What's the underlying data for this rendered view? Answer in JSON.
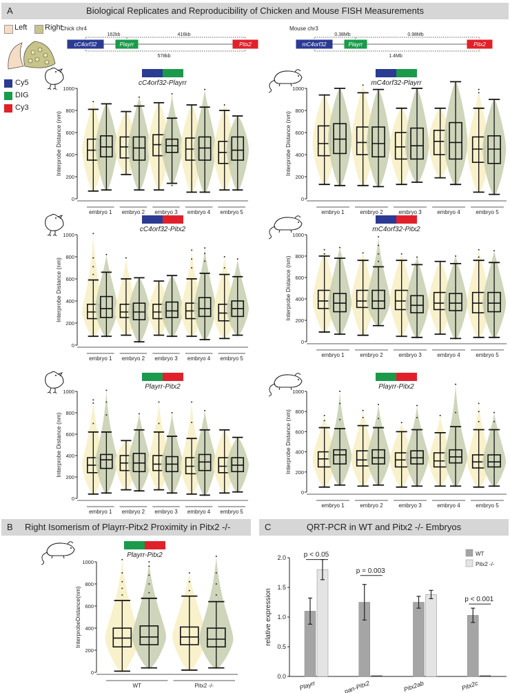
{
  "figure_title": "Biological Replicates and Reproducibility of Chicken and Mouse FISH Measurements",
  "panel_labels": {
    "a": "A",
    "b": "B",
    "c": "C"
  },
  "panel_b_title": "Right Isomerism of Playrr-Pitx2 Proximity in Pitx2 -/-",
  "panel_c_title": "QRT-PCR in WT and Pitx2 -/- Embryos",
  "side_legend": {
    "left": "Left",
    "right": "Right",
    "left_color": "#f6dcc4",
    "right_color": "#c8c48a"
  },
  "probe_legend": [
    {
      "label": "Cy5",
      "color": "#2b3a93"
    },
    {
      "label": "DIG",
      "color": "#1a9a4a"
    },
    {
      "label": "Cy3",
      "color": "#e0212b"
    }
  ],
  "locus": {
    "chick": {
      "title": "Chick chr4",
      "genes": [
        "cC4orf32",
        "Playrr",
        "Pitx2"
      ],
      "gaps": [
        "162kb",
        "416kb",
        "578kb"
      ]
    },
    "mouse": {
      "title": "Mouse chr3",
      "genes": [
        "mC4orf32",
        "Playrr",
        "Pitx2"
      ],
      "gaps": [
        "0.38Mb",
        "0.98Mb",
        "1.4Mb"
      ]
    }
  },
  "colors": {
    "left_fill": "#f7f0c6",
    "right_fill": "#c9d0b2",
    "box": "#111111",
    "wt_bar": "#a5a5a5",
    "ko_bar": "#e4e4e4"
  },
  "chart_data": [
    {
      "type": "box",
      "id": "A1",
      "title": "cC4orf32-Playrr",
      "probe_colors": [
        "#2b3a93",
        "#1a9a4a"
      ],
      "species": "chick",
      "ylabel": "Interprobe Distance (nm)",
      "ylim": [
        0,
        1000
      ],
      "yticks": [
        0,
        200,
        400,
        600,
        800,
        1000
      ],
      "categories": [
        "embryo 1",
        "embryo 2",
        "embryo 3",
        "embryo 4",
        "embryo 5"
      ],
      "boxes": [
        {
          "min": 70,
          "q1": 350,
          "med": 440,
          "q3": 540,
          "max": 810,
          "out": [
            880
          ]
        },
        {
          "min": 80,
          "q1": 380,
          "med": 470,
          "q3": 570,
          "max": 860,
          "out": []
        },
        {
          "min": 220,
          "q1": 370,
          "med": 470,
          "q3": 560,
          "max": 790,
          "out": []
        },
        {
          "min": 80,
          "q1": 350,
          "med": 460,
          "q3": 560,
          "max": 840,
          "out": [
            920
          ]
        },
        {
          "min": 80,
          "q1": 390,
          "med": 490,
          "q3": 580,
          "max": 870,
          "out": []
        },
        {
          "min": 140,
          "q1": 420,
          "med": 480,
          "q3": 540,
          "max": 730,
          "out": [
            950,
            120
          ]
        },
        {
          "min": 60,
          "q1": 350,
          "med": 450,
          "q3": 550,
          "max": 850,
          "out": []
        },
        {
          "min": 60,
          "q1": 350,
          "med": 460,
          "q3": 560,
          "max": 830,
          "out": [
            990
          ]
        },
        {
          "min": 80,
          "q1": 320,
          "med": 420,
          "q3": 520,
          "max": 800,
          "out": [
            850
          ]
        },
        {
          "min": 80,
          "q1": 350,
          "med": 440,
          "q3": 560,
          "max": 750,
          "out": []
        }
      ]
    },
    {
      "type": "box",
      "id": "A2",
      "title": "mC4orf32-Playrr",
      "probe_colors": [
        "#2b3a93",
        "#1a9a4a"
      ],
      "species": "mouse",
      "ylabel": "Interprobe Distance (nm)",
      "ylim": [
        0,
        1000
      ],
      "yticks": [
        0,
        200,
        400,
        600,
        800,
        1000
      ],
      "categories": [
        "embryo 1",
        "embryo 2",
        "embryo 3",
        "embryo 4",
        "embryo 5"
      ],
      "boxes": [
        {
          "min": 130,
          "q1": 390,
          "med": 500,
          "q3": 660,
          "max": 940,
          "out": []
        },
        {
          "min": 120,
          "q1": 410,
          "med": 540,
          "q3": 680,
          "max": 1000,
          "out": []
        },
        {
          "min": 120,
          "q1": 400,
          "med": 510,
          "q3": 650,
          "max": 960,
          "out": [
            1030
          ]
        },
        {
          "min": 110,
          "q1": 380,
          "med": 500,
          "q3": 650,
          "max": 990,
          "out": []
        },
        {
          "min": 130,
          "q1": 360,
          "med": 470,
          "q3": 600,
          "max": 820,
          "out": []
        },
        {
          "min": 150,
          "q1": 360,
          "med": 480,
          "q3": 640,
          "max": 1000,
          "out": []
        },
        {
          "min": 190,
          "q1": 400,
          "med": 520,
          "q3": 620,
          "max": 820,
          "out": []
        },
        {
          "min": 130,
          "q1": 360,
          "med": 510,
          "q3": 690,
          "max": 1060,
          "out": []
        },
        {
          "min": 60,
          "q1": 330,
          "med": 450,
          "q3": 560,
          "max": 820,
          "out": [
            990,
            960
          ]
        },
        {
          "min": 40,
          "q1": 320,
          "med": 450,
          "q3": 570,
          "max": 900,
          "out": []
        }
      ]
    },
    {
      "type": "box",
      "id": "A3",
      "title": "cC4orf32-Pitx2",
      "probe_colors": [
        "#2b3a93",
        "#e0212b"
      ],
      "species": "chick",
      "ylabel": "Interprobe Distance (nm)",
      "ylim": [
        0,
        1000
      ],
      "yticks": [
        0,
        200,
        400,
        600,
        800,
        1000
      ],
      "categories": [
        "embryo 1",
        "embryo 2",
        "embryo 3",
        "embryo 4",
        "embryo 5"
      ],
      "boxes": [
        {
          "min": 80,
          "q1": 240,
          "med": 300,
          "q3": 370,
          "max": 590,
          "out": [
            640,
            710,
            790,
            1010
          ]
        },
        {
          "min": 80,
          "q1": 250,
          "med": 330,
          "q3": 440,
          "max": 660,
          "out": [
            820
          ]
        },
        {
          "min": 90,
          "q1": 250,
          "med": 300,
          "q3": 370,
          "max": 600,
          "out": [
            790
          ]
        },
        {
          "min": 30,
          "q1": 230,
          "med": 300,
          "q3": 380,
          "max": 610,
          "out": []
        },
        {
          "min": 90,
          "q1": 240,
          "med": 300,
          "q3": 370,
          "max": 580,
          "out": []
        },
        {
          "min": 80,
          "q1": 250,
          "med": 310,
          "q3": 390,
          "max": 630,
          "out": []
        },
        {
          "min": 80,
          "q1": 240,
          "med": 310,
          "q3": 380,
          "max": 600,
          "out": [
            700,
            780,
            860
          ]
        },
        {
          "min": 50,
          "q1": 260,
          "med": 330,
          "q3": 430,
          "max": 650,
          "out": [
            760,
            830,
            880
          ]
        },
        {
          "min": 60,
          "q1": 220,
          "med": 290,
          "q3": 370,
          "max": 640,
          "out": [
            700,
            800
          ]
        },
        {
          "min": 90,
          "q1": 260,
          "med": 330,
          "q3": 400,
          "max": 620,
          "out": [
            780
          ]
        }
      ]
    },
    {
      "type": "box",
      "id": "A4",
      "title": "mC4orf32-Pitx2",
      "probe_colors": [
        "#2b3a93",
        "#e0212b"
      ],
      "species": "mouse",
      "ylabel": "Interprobe Distance (nm)",
      "ylim": [
        0,
        1000
      ],
      "yticks": [
        0,
        200,
        400,
        600,
        800,
        1000
      ],
      "categories": [
        "embryo 1",
        "embryo 2",
        "embryo 3",
        "embryo 4",
        "embryo 5"
      ],
      "boxes": [
        {
          "min": 90,
          "q1": 310,
          "med": 380,
          "q3": 480,
          "max": 800,
          "out": [
            820,
            860
          ]
        },
        {
          "min": 70,
          "q1": 280,
          "med": 360,
          "q3": 450,
          "max": 780,
          "out": [
            880
          ]
        },
        {
          "min": 60,
          "q1": 320,
          "med": 380,
          "q3": 480,
          "max": 760,
          "out": [
            830
          ]
        },
        {
          "min": 150,
          "q1": 310,
          "med": 380,
          "q3": 480,
          "max": 700,
          "out": [
            750,
            820,
            900,
            980
          ]
        },
        {
          "min": 50,
          "q1": 300,
          "med": 380,
          "q3": 480,
          "max": 760,
          "out": [
            820
          ]
        },
        {
          "min": 40,
          "q1": 270,
          "med": 340,
          "q3": 430,
          "max": 720,
          "out": [
            790
          ]
        },
        {
          "min": 70,
          "q1": 300,
          "med": 360,
          "q3": 460,
          "max": 750,
          "out": []
        },
        {
          "min": 30,
          "q1": 290,
          "med": 360,
          "q3": 450,
          "max": 730,
          "out": [
            800
          ]
        },
        {
          "min": 40,
          "q1": 270,
          "med": 360,
          "q3": 460,
          "max": 760,
          "out": [
            790,
            860
          ]
        },
        {
          "min": 40,
          "q1": 280,
          "med": 360,
          "q3": 460,
          "max": 740,
          "out": [
            850
          ]
        }
      ]
    },
    {
      "type": "box",
      "id": "A5",
      "title": "Playrr-Pitx2",
      "probe_colors": [
        "#1a9a4a",
        "#e0212b"
      ],
      "species": "chick",
      "ylabel": "Interprobe Distance (nm)",
      "ylim": [
        0,
        1000
      ],
      "yticks": [
        0,
        200,
        400,
        600,
        800,
        1000
      ],
      "categories": [
        "embryo 1",
        "embryo 2",
        "embryo 3",
        "embryo 4",
        "embryo 5"
      ],
      "boxes": [
        {
          "min": 40,
          "q1": 240,
          "med": 310,
          "q3": 380,
          "max": 620,
          "out": [
            700,
            890,
            920
          ]
        },
        {
          "min": 50,
          "q1": 280,
          "med": 360,
          "q3": 410,
          "max": 620,
          "out": [
            780,
            900,
            1010
          ]
        },
        {
          "min": 80,
          "q1": 260,
          "med": 330,
          "q3": 400,
          "max": 540,
          "out": []
        },
        {
          "min": 70,
          "q1": 250,
          "med": 330,
          "q3": 420,
          "max": 640,
          "out": [
            790
          ]
        },
        {
          "min": 80,
          "q1": 260,
          "med": 320,
          "q3": 400,
          "max": 620,
          "out": [
            700,
            900
          ]
        },
        {
          "min": 50,
          "q1": 250,
          "med": 320,
          "q3": 390,
          "max": 580,
          "out": [
            800
          ]
        },
        {
          "min": 40,
          "q1": 230,
          "med": 300,
          "q3": 380,
          "max": 560,
          "out": [
            710,
            900
          ]
        },
        {
          "min": 30,
          "q1": 260,
          "med": 340,
          "q3": 410,
          "max": 640,
          "out": [
            820
          ]
        },
        {
          "min": 50,
          "q1": 240,
          "med": 300,
          "q3": 380,
          "max": 640,
          "out": []
        },
        {
          "min": 60,
          "q1": 250,
          "med": 310,
          "q3": 380,
          "max": 570,
          "out": []
        }
      ]
    },
    {
      "type": "box",
      "id": "A6",
      "title": "Playrr-Pitx2",
      "probe_colors": [
        "#1a9a4a",
        "#e0212b"
      ],
      "species": "mouse",
      "ylabel": "Interprobe Distance (nm)",
      "ylim": [
        0,
        1000
      ],
      "yticks": [
        0,
        200,
        400,
        600,
        800,
        1000
      ],
      "categories": [
        "embryo 1",
        "embryo 2",
        "embryo 3",
        "embryo 4",
        "embryo 5"
      ],
      "boxes": [
        {
          "min": 50,
          "q1": 250,
          "med": 330,
          "q3": 400,
          "max": 640,
          "out": [
            710,
            760
          ]
        },
        {
          "min": 70,
          "q1": 280,
          "med": 370,
          "q3": 420,
          "max": 630,
          "out": [
            720,
            880,
            1000
          ]
        },
        {
          "min": 60,
          "q1": 260,
          "med": 320,
          "q3": 410,
          "max": 660,
          "out": [
            740,
            810
          ]
        },
        {
          "min": 70,
          "q1": 280,
          "med": 340,
          "q3": 420,
          "max": 640,
          "out": [
            730,
            870
          ]
        },
        {
          "min": 50,
          "q1": 250,
          "med": 320,
          "q3": 390,
          "max": 600,
          "out": [
            690
          ]
        },
        {
          "min": 60,
          "q1": 280,
          "med": 340,
          "q3": 410,
          "max": 620,
          "out": [
            740,
            860
          ]
        },
        {
          "min": 60,
          "q1": 250,
          "med": 310,
          "q3": 390,
          "max": 590,
          "out": [
            760
          ]
        },
        {
          "min": 60,
          "q1": 290,
          "med": 350,
          "q3": 420,
          "max": 650,
          "out": [
            790,
            1070
          ]
        },
        {
          "min": 50,
          "q1": 240,
          "med": 300,
          "q3": 370,
          "max": 620,
          "out": [
            700,
            800,
            880
          ]
        },
        {
          "min": 60,
          "q1": 250,
          "med": 300,
          "q3": 370,
          "max": 620,
          "out": [
            700,
            790
          ]
        }
      ]
    },
    {
      "type": "box",
      "id": "B",
      "title": "Playrr-Pitx2",
      "probe_colors": [
        "#1a9a4a",
        "#e0212b"
      ],
      "species": "mouse",
      "ylabel": "InterprobeDistance(nm)",
      "ylim": [
        0,
        1000
      ],
      "yticks": [
        0,
        200,
        400,
        600,
        800,
        1000
      ],
      "categories": [
        "WT",
        "Pitx2 -/-"
      ],
      "boxes": [
        {
          "min": 10,
          "q1": 230,
          "med": 310,
          "q3": 400,
          "max": 650,
          "out": [
            700,
            760,
            820,
            900,
            1020
          ]
        },
        {
          "min": 40,
          "q1": 250,
          "med": 320,
          "q3": 420,
          "max": 670,
          "out": [
            720,
            800,
            880,
            960,
            1000
          ]
        },
        {
          "min": 20,
          "q1": 250,
          "med": 320,
          "q3": 410,
          "max": 690,
          "out": [
            740,
            820,
            900
          ]
        },
        {
          "min": 40,
          "q1": 230,
          "med": 300,
          "q3": 400,
          "max": 640,
          "out": [
            700,
            800,
            900,
            1050
          ]
        }
      ]
    },
    {
      "type": "bar",
      "id": "C",
      "ylabel": "relative expression",
      "ylim": [
        0,
        2.0
      ],
      "yticks": [
        0.0,
        0.5,
        1.0,
        1.5,
        2.0
      ],
      "categories": [
        "Playrr",
        "pan-Pitx2",
        "Pitx2ab",
        "Pitx2c"
      ],
      "series": [
        {
          "name": "WT",
          "values": [
            1.1,
            1.25,
            1.25,
            1.03
          ],
          "err": [
            0.22,
            0.3,
            0.1,
            0.12
          ]
        },
        {
          "name": "Pitx2 -/-",
          "values": [
            1.8,
            0.0,
            1.38,
            0.0
          ],
          "err": [
            0.17,
            0.0,
            0.07,
            0.0
          ]
        }
      ],
      "annotations": [
        "p < 0.05",
        "p = 0.003",
        "p < 0.001"
      ],
      "legend_position": "top-right"
    }
  ]
}
